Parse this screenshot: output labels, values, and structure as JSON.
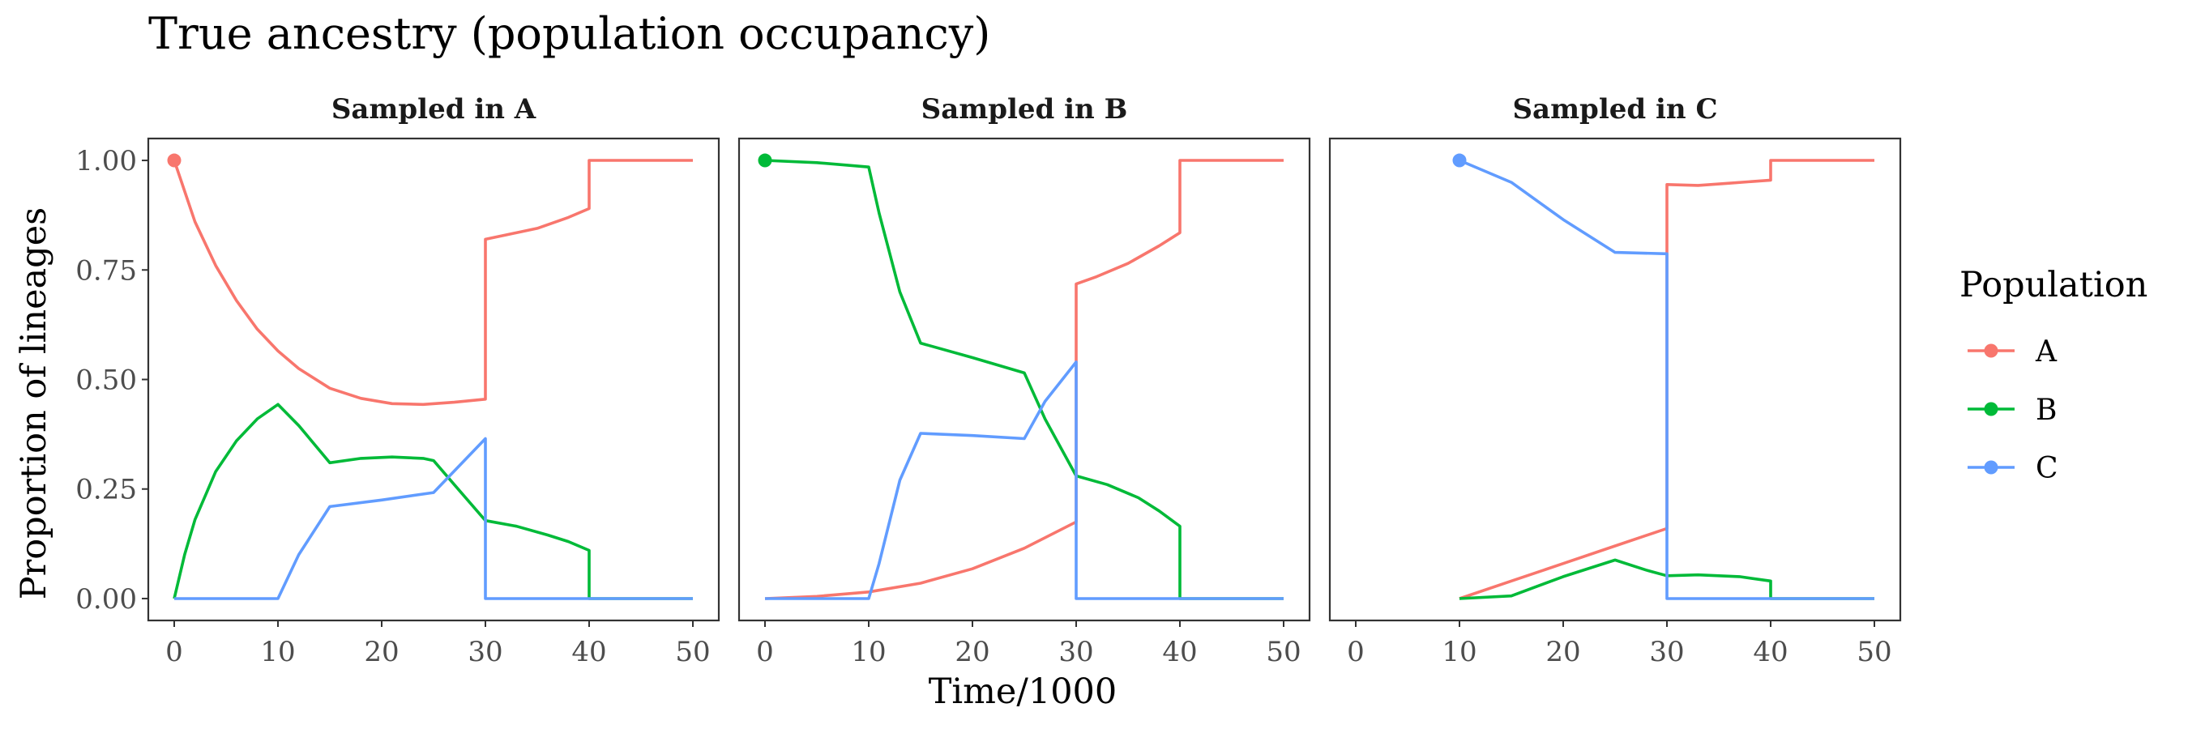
{
  "chart_data": {
    "type": "line",
    "title": "True ancestry (population occupancy)",
    "xlabel": "Time/1000",
    "ylabel": "Proportion of lineages",
    "xlim": [
      -2.5,
      52.5
    ],
    "ylim": [
      -0.05,
      1.05
    ],
    "x_ticks": [
      0,
      10,
      20,
      30,
      40,
      50
    ],
    "x_tick_labels": [
      "0",
      "10",
      "20",
      "30",
      "40",
      "50"
    ],
    "y_ticks": [
      0,
      0.25,
      0.5,
      0.75,
      1.0
    ],
    "y_tick_labels": [
      "0.00",
      "0.25",
      "0.50",
      "0.75",
      "1.00"
    ],
    "grid": false,
    "legend": {
      "title": "Population",
      "position": "right",
      "entries": [
        {
          "label": "A",
          "color": "#F8766D"
        },
        {
          "label": "B",
          "color": "#00BA38"
        },
        {
          "label": "C",
          "color": "#619CFF"
        }
      ]
    },
    "panels": [
      {
        "title": "Sampled in A",
        "start_point": {
          "series": "A",
          "x": 0,
          "y": 1.0
        },
        "series": [
          {
            "name": "A",
            "color": "#F8766D",
            "points": [
              [
                0,
                1.0
              ],
              [
                2,
                0.86
              ],
              [
                4,
                0.76
              ],
              [
                6,
                0.68
              ],
              [
                8,
                0.615
              ],
              [
                10,
                0.565
              ],
              [
                12,
                0.525
              ],
              [
                15,
                0.48
              ],
              [
                18,
                0.457
              ],
              [
                21,
                0.445
              ],
              [
                24,
                0.443
              ],
              [
                27,
                0.448
              ],
              [
                30,
                0.455
              ],
              [
                30,
                0.82
              ],
              [
                32,
                0.83
              ],
              [
                35,
                0.845
              ],
              [
                38,
                0.87
              ],
              [
                40,
                0.89
              ],
              [
                40,
                1.0
              ],
              [
                50,
                1.0
              ]
            ]
          },
          {
            "name": "B",
            "color": "#00BA38",
            "points": [
              [
                0,
                0
              ],
              [
                1,
                0.1
              ],
              [
                2,
                0.18
              ],
              [
                4,
                0.29
              ],
              [
                6,
                0.36
              ],
              [
                8,
                0.41
              ],
              [
                10,
                0.443
              ],
              [
                12,
                0.395
              ],
              [
                15,
                0.31
              ],
              [
                18,
                0.32
              ],
              [
                21,
                0.323
              ],
              [
                24,
                0.32
              ],
              [
                25,
                0.315
              ],
              [
                27,
                0.26
              ],
              [
                30,
                0.178
              ],
              [
                33,
                0.165
              ],
              [
                36,
                0.145
              ],
              [
                38,
                0.13
              ],
              [
                40,
                0.11
              ],
              [
                40,
                0
              ],
              [
                50,
                0
              ]
            ]
          },
          {
            "name": "C",
            "color": "#619CFF",
            "points": [
              [
                0,
                0
              ],
              [
                10,
                0
              ],
              [
                12,
                0.1
              ],
              [
                15,
                0.21
              ],
              [
                20,
                0.225
              ],
              [
                25,
                0.242
              ],
              [
                30,
                0.365
              ],
              [
                30,
                0
              ],
              [
                50,
                0
              ]
            ]
          }
        ]
      },
      {
        "title": "Sampled in B",
        "start_point": {
          "series": "B",
          "x": 0,
          "y": 1.0
        },
        "series": [
          {
            "name": "A",
            "color": "#F8766D",
            "points": [
              [
                0,
                0
              ],
              [
                5,
                0.005
              ],
              [
                10,
                0.015
              ],
              [
                15,
                0.035
              ],
              [
                20,
                0.068
              ],
              [
                25,
                0.115
              ],
              [
                30,
                0.175
              ],
              [
                30,
                0.718
              ],
              [
                32,
                0.735
              ],
              [
                35,
                0.765
              ],
              [
                38,
                0.805
              ],
              [
                40,
                0.835
              ],
              [
                40,
                1.0
              ],
              [
                50,
                1.0
              ]
            ]
          },
          {
            "name": "B",
            "color": "#00BA38",
            "points": [
              [
                0,
                1.0
              ],
              [
                5,
                0.995
              ],
              [
                10,
                0.985
              ],
              [
                11,
                0.88
              ],
              [
                13,
                0.7
              ],
              [
                15,
                0.583
              ],
              [
                20,
                0.55
              ],
              [
                25,
                0.515
              ],
              [
                27,
                0.41
              ],
              [
                30,
                0.28
              ],
              [
                33,
                0.26
              ],
              [
                36,
                0.23
              ],
              [
                38,
                0.2
              ],
              [
                40,
                0.165
              ],
              [
                40,
                0
              ],
              [
                50,
                0
              ]
            ]
          },
          {
            "name": "C",
            "color": "#619CFF",
            "points": [
              [
                0,
                0
              ],
              [
                10,
                0
              ],
              [
                11,
                0.08
              ],
              [
                13,
                0.27
              ],
              [
                15,
                0.377
              ],
              [
                20,
                0.372
              ],
              [
                25,
                0.365
              ],
              [
                27,
                0.45
              ],
              [
                30,
                0.54
              ],
              [
                30,
                0
              ],
              [
                50,
                0
              ]
            ]
          }
        ]
      },
      {
        "title": "Sampled in C",
        "start_point": {
          "series": "C",
          "x": 10,
          "y": 1.0
        },
        "series": [
          {
            "name": "A",
            "color": "#F8766D",
            "points": [
              [
                10,
                0
              ],
              [
                15,
                0.04
              ],
              [
                20,
                0.08
              ],
              [
                25,
                0.12
              ],
              [
                30,
                0.16
              ],
              [
                30,
                0.945
              ],
              [
                33,
                0.943
              ],
              [
                36,
                0.948
              ],
              [
                40,
                0.955
              ],
              [
                40,
                1.0
              ],
              [
                50,
                1.0
              ]
            ]
          },
          {
            "name": "B",
            "color": "#00BA38",
            "points": [
              [
                10,
                0
              ],
              [
                15,
                0.006
              ],
              [
                20,
                0.05
              ],
              [
                25,
                0.088
              ],
              [
                28,
                0.065
              ],
              [
                30,
                0.052
              ],
              [
                33,
                0.054
              ],
              [
                37,
                0.05
              ],
              [
                40,
                0.04
              ],
              [
                40,
                0
              ],
              [
                50,
                0
              ]
            ]
          },
          {
            "name": "C",
            "color": "#619CFF",
            "points": [
              [
                10,
                1.0
              ],
              [
                15,
                0.95
              ],
              [
                20,
                0.865
              ],
              [
                25,
                0.79
              ],
              [
                30,
                0.787
              ],
              [
                30,
                0
              ],
              [
                50,
                0
              ]
            ]
          }
        ]
      }
    ]
  }
}
